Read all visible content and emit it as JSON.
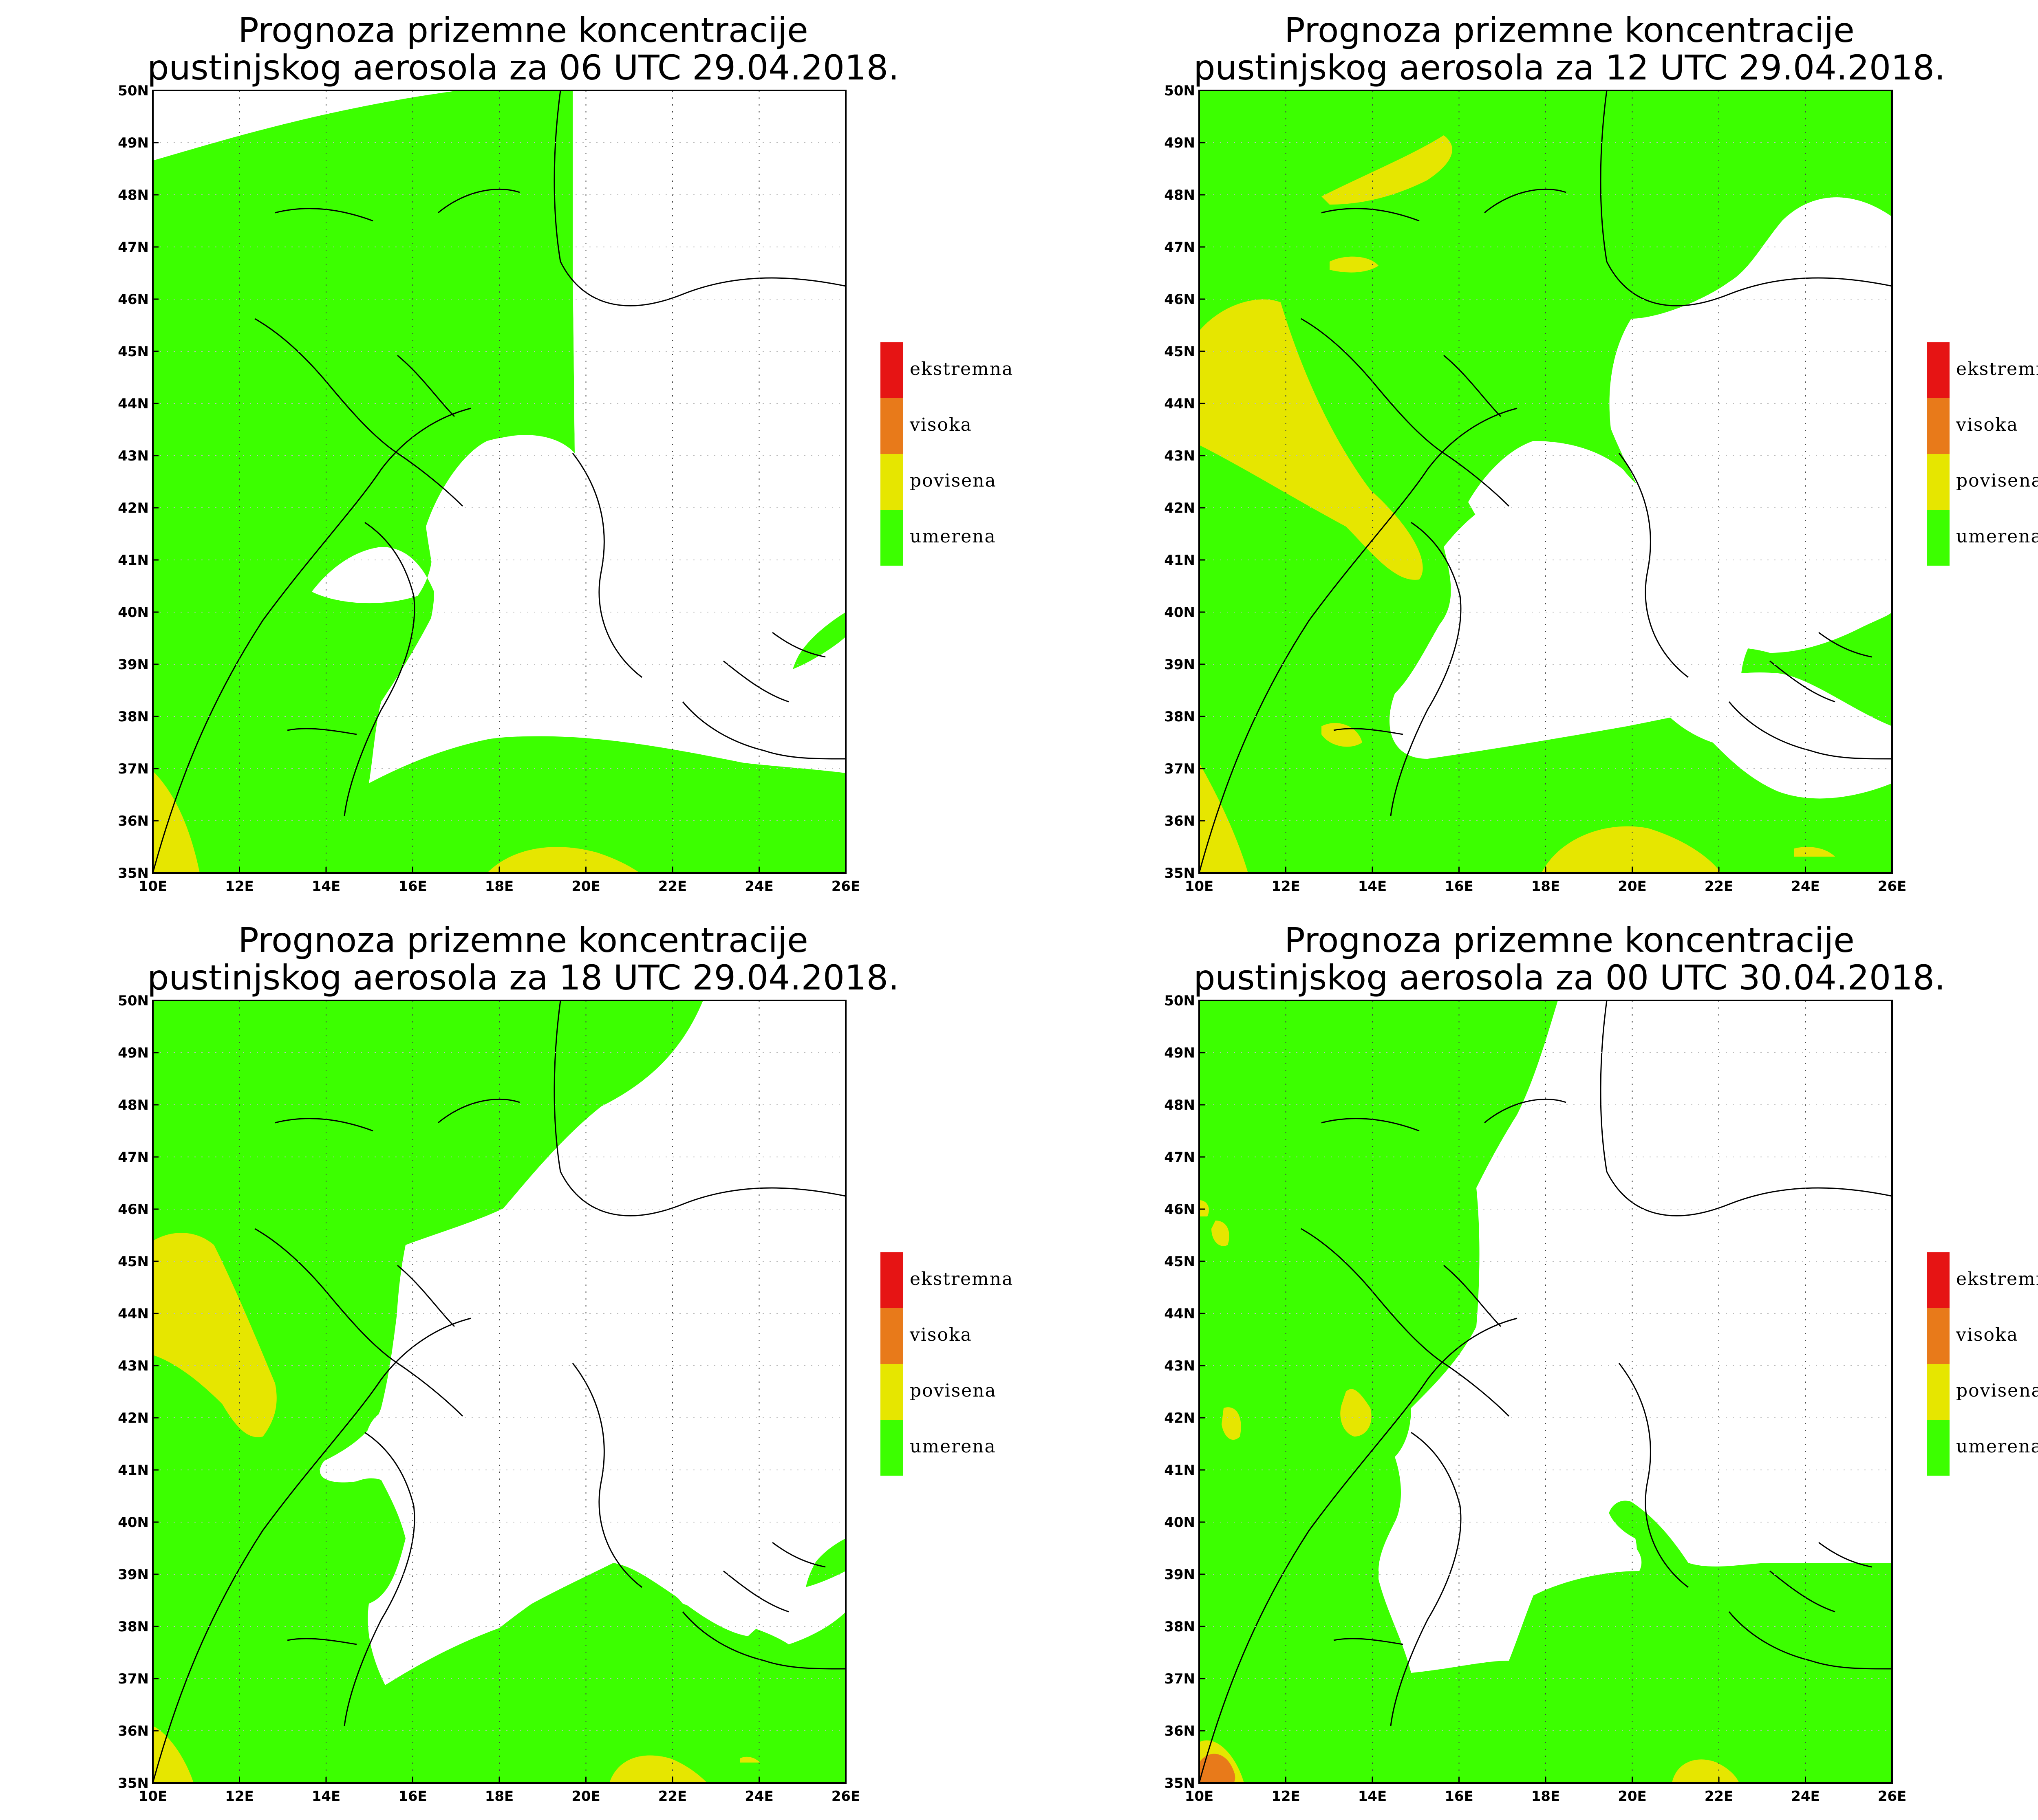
{
  "colors": {
    "umerena": "#3cff00",
    "povisena": "#e6e600",
    "visoka": "#e87a1a",
    "ekstremna": "#e61414",
    "background": "#ffffff",
    "border": "#000000"
  },
  "legend": [
    {
      "label": "ekstremna",
      "color": "#e61414"
    },
    {
      "label": "visoka",
      "color": "#e87a1a"
    },
    {
      "label": "povisena",
      "color": "#e6e600"
    },
    {
      "label": "umerena",
      "color": "#3cff00"
    }
  ],
  "axes": {
    "lat_labels": [
      "50N",
      "49N",
      "48N",
      "47N",
      "46N",
      "45N",
      "44N",
      "43N",
      "42N",
      "41N",
      "40N",
      "39N",
      "38N",
      "37N",
      "36N",
      "35N"
    ],
    "lon_labels": [
      "10E",
      "12E",
      "14E",
      "16E",
      "18E",
      "20E",
      "22E",
      "24E",
      "26E"
    ],
    "lat_range": [
      35,
      50
    ],
    "lon_range": [
      10,
      26
    ]
  },
  "panels": [
    {
      "title_line1": "Prognoza prizemne koncentracije",
      "title_line2": "pustinjskog aerosola za 06 UTC 29.04.2018."
    },
    {
      "title_line1": "Prognoza prizemne koncentracije",
      "title_line2": "pustinjskog aerosola za 12 UTC 29.04.2018."
    },
    {
      "title_line1": "Prognoza prizemne koncentracije",
      "title_line2": "pustinjskog aerosola za 18 UTC 29.04.2018."
    },
    {
      "title_line1": "Prognoza prizemne koncentracije",
      "title_line2": "pustinjskog aerosola za 00 UTC 30.04.2018."
    }
  ]
}
